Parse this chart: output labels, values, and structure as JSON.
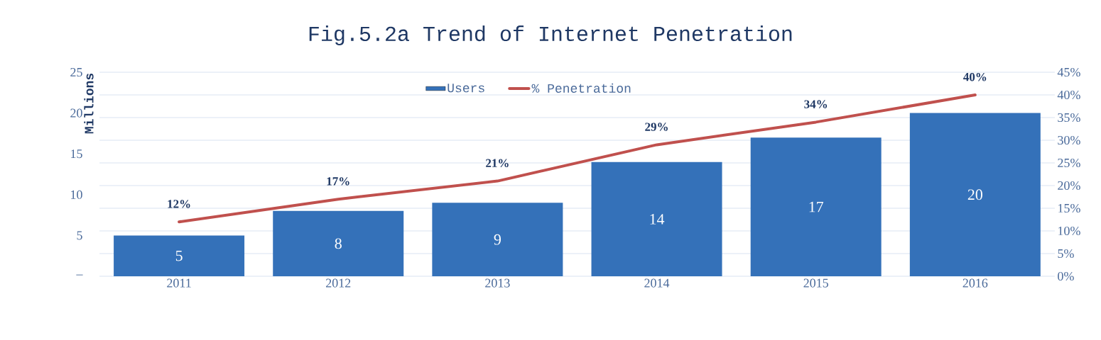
{
  "chart_data": {
    "type": "bar",
    "title": "Fig.5.2a Trend of  Internet Penetration",
    "ylabel": "Millions",
    "categories": [
      "2011",
      "2012",
      "2013",
      "2014",
      "2015",
      "2016"
    ],
    "series": [
      {
        "name": "Users",
        "color": "#3471b9",
        "values": [
          5,
          8,
          9,
          14,
          17,
          20
        ],
        "value_labels": [
          "5",
          "8",
          "9",
          "14",
          "17",
          "20"
        ]
      },
      {
        "name": "% Penetration",
        "type": "line",
        "axis": "y2",
        "color": "#c0504d",
        "values": [
          12,
          17,
          21,
          29,
          34,
          40
        ],
        "value_labels": [
          "12%",
          "17%",
          "21%",
          "29%",
          "34%",
          "40%"
        ]
      }
    ],
    "ylim": [
      0,
      25
    ],
    "yticks": [
      {
        "value": 0,
        "label": "–"
      },
      5,
      10,
      15,
      20,
      25
    ],
    "y2lim": [
      0,
      45
    ],
    "y2ticks": [
      {
        "value": 0,
        "label": "0%"
      },
      {
        "value": 5,
        "label": "5%"
      },
      {
        "value": 10,
        "label": "10%"
      },
      {
        "value": 15,
        "label": "15%"
      },
      {
        "value": 20,
        "label": "20%"
      },
      {
        "value": 25,
        "label": "25%"
      },
      {
        "value": 30,
        "label": "30%"
      },
      {
        "value": 35,
        "label": "35%"
      },
      {
        "value": 40,
        "label": "40%"
      },
      {
        "value": 45,
        "label": "45%"
      }
    ],
    "grid": "y",
    "legend": "top",
    "marker": "none",
    "line_style": "solid"
  }
}
